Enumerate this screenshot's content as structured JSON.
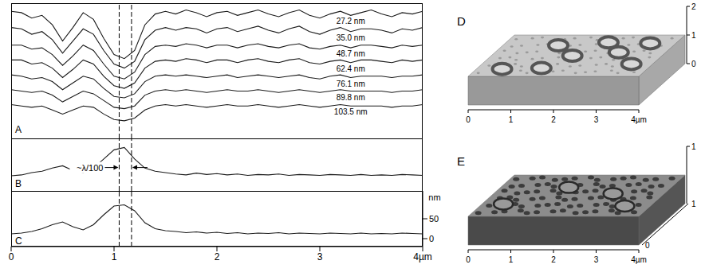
{
  "chart_data": [
    {
      "type": "line",
      "title": "A",
      "tick_labels": false,
      "x": [
        0,
        0.1,
        0.2,
        0.3,
        0.4,
        0.5,
        0.6,
        0.7,
        0.8,
        0.9,
        1,
        1.1,
        1.2,
        1.3,
        1.4,
        1.5,
        1.6,
        1.7,
        1.8,
        1.9,
        2,
        2.1,
        2.2,
        2.3,
        2.4,
        2.5,
        2.6,
        2.7,
        2.8,
        2.9,
        3,
        3.1,
        3.2,
        3.3,
        3.4,
        3.5,
        3.6,
        3.7,
        3.8,
        3.9,
        4
      ],
      "xlim": [
        0,
        4
      ],
      "ylim": [
        0,
        100
      ],
      "vlines": [
        1.05,
        1.17
      ],
      "series": [
        {
          "name": "27.2 nm",
          "color": "#1a1a1a",
          "values": [
            94,
            93,
            89,
            91,
            84,
            72,
            82,
            93,
            88,
            74,
            62,
            59,
            65,
            84,
            92,
            94,
            92,
            95,
            93,
            90,
            93,
            94,
            91,
            93,
            95,
            92,
            90,
            93,
            95,
            91,
            89,
            92,
            94,
            91,
            93,
            95,
            92,
            90,
            93,
            92,
            94
          ]
        },
        {
          "name": "35.0 nm",
          "color": "#1a1a1a",
          "values": [
            82,
            81,
            77,
            79,
            73,
            63,
            72,
            81,
            77,
            65,
            55,
            52,
            57,
            73,
            80,
            82,
            80,
            82,
            81,
            78,
            81,
            82,
            79,
            81,
            83,
            80,
            78,
            81,
            83,
            79,
            77,
            80,
            82,
            79,
            81,
            81,
            80,
            78,
            81,
            80,
            82
          ]
        },
        {
          "name": "48.7 nm",
          "color": "#1a1a1a",
          "values": [
            69,
            69,
            66,
            67,
            62,
            54,
            61,
            69,
            65,
            55,
            46,
            44,
            49,
            62,
            68,
            69,
            68,
            70,
            69,
            67,
            69,
            69,
            67,
            69,
            70,
            68,
            67,
            69,
            70,
            67,
            66,
            68,
            69,
            67,
            69,
            69,
            68,
            67,
            69,
            68,
            69
          ]
        },
        {
          "name": "62.4 nm",
          "color": "#1a1a1a",
          "values": [
            58,
            58,
            55,
            56,
            52,
            45,
            51,
            58,
            55,
            46,
            39,
            37,
            41,
            52,
            57,
            58,
            57,
            59,
            58,
            56,
            58,
            58,
            56,
            58,
            59,
            57,
            56,
            58,
            59,
            56,
            55,
            57,
            58,
            56,
            58,
            58,
            57,
            56,
            58,
            57,
            58
          ]
        },
        {
          "name": "76.1 nm",
          "color": "#1a1a1a",
          "values": [
            47,
            46,
            44,
            45,
            42,
            36,
            41,
            46,
            44,
            37,
            31,
            30,
            33,
            42,
            46,
            47,
            46,
            47,
            46,
            45,
            46,
            47,
            45,
            46,
            47,
            46,
            45,
            46,
            47,
            45,
            44,
            46,
            47,
            45,
            46,
            46,
            46,
            45,
            46,
            46,
            47
          ]
        },
        {
          "name": "89.8 nm",
          "color": "#1a1a1a",
          "values": [
            36,
            35,
            34,
            35,
            32,
            27,
            31,
            35,
            33,
            28,
            23,
            22,
            24,
            32,
            35,
            36,
            35,
            36,
            35,
            34,
            35,
            36,
            35,
            35,
            36,
            35,
            34,
            35,
            36,
            35,
            34,
            35,
            36,
            35,
            35,
            35,
            35,
            34,
            35,
            35,
            36
          ]
        },
        {
          "name": "103.5 nm",
          "color": "#1a1a1a",
          "values": [
            25,
            24,
            23,
            24,
            21,
            18,
            21,
            24,
            23,
            18,
            14,
            13,
            15,
            21,
            24,
            25,
            24,
            25,
            24,
            23,
            24,
            25,
            24,
            24,
            25,
            24,
            23,
            24,
            25,
            24,
            23,
            24,
            25,
            24,
            24,
            24,
            24,
            23,
            24,
            24,
            25
          ]
        }
      ]
    },
    {
      "type": "line",
      "title": "B",
      "tick_labels": false,
      "annotation": "~λ/100",
      "x": [
        0,
        0.1,
        0.2,
        0.3,
        0.4,
        0.5,
        0.6,
        0.7,
        0.8,
        0.9,
        1,
        1.1,
        1.2,
        1.3,
        1.4,
        1.5,
        1.6,
        1.7,
        1.8,
        1.9,
        2,
        2.1,
        2.2,
        2.3,
        2.4,
        2.5,
        2.6,
        2.7,
        2.8,
        2.9,
        3,
        3.1,
        3.2,
        3.3,
        3.4,
        3.5,
        3.6,
        3.7,
        3.8,
        3.9,
        4
      ],
      "xlim": [
        0,
        4
      ],
      "ylim": [
        -15,
        100
      ],
      "vlines": [
        1.05,
        1.17
      ],
      "color": "#1a1a1a",
      "values": [
        18,
        20,
        25,
        28,
        35,
        40,
        30,
        25,
        35,
        55,
        75,
        80,
        55,
        35,
        28,
        25,
        22,
        20,
        24,
        21,
        23,
        20,
        22,
        19,
        21,
        20,
        22,
        19,
        21,
        20,
        19,
        21,
        20,
        19,
        21,
        19,
        20,
        19,
        21,
        20,
        19
      ]
    },
    {
      "type": "line",
      "title": "C",
      "y_label": "nm",
      "x": [
        0,
        0.1,
        0.2,
        0.3,
        0.4,
        0.5,
        0.6,
        0.7,
        0.8,
        0.9,
        1,
        1.1,
        1.2,
        1.3,
        1.4,
        1.5,
        1.6,
        1.7,
        1.8,
        1.9,
        2,
        2.1,
        2.2,
        2.3,
        2.4,
        2.5,
        2.6,
        2.7,
        2.8,
        2.9,
        3,
        3.1,
        3.2,
        3.3,
        3.4,
        3.5,
        3.6,
        3.7,
        3.8,
        3.9,
        4
      ],
      "xlim": [
        0,
        4
      ],
      "xticks": [
        0,
        1,
        2,
        3,
        {
          "value": 4,
          "label": "4µm"
        }
      ],
      "ylim": [
        -20,
        120
      ],
      "yticks": [
        0,
        50
      ],
      "vlines": [
        1.05,
        1.17
      ],
      "color": "#1a1a1a",
      "values": [
        12,
        14,
        18,
        25,
        35,
        42,
        30,
        22,
        35,
        60,
        82,
        85,
        70,
        40,
        25,
        20,
        18,
        15,
        17,
        14,
        16,
        13,
        15,
        12,
        14,
        13,
        15,
        12,
        14,
        13,
        12,
        14,
        13,
        12,
        14,
        12,
        13,
        12,
        14,
        13,
        12
      ]
    },
    {
      "type": "surface",
      "title": "D",
      "xlim": [
        0,
        4
      ],
      "xticks": [
        0,
        1,
        2,
        3,
        {
          "value": 4,
          "label": "4µm"
        }
      ],
      "zlim": [
        0,
        2
      ],
      "zticks": [
        0,
        1,
        2
      ],
      "color": "#c8c8c8"
    },
    {
      "type": "surface",
      "title": "E",
      "xlim": [
        0,
        4
      ],
      "xticks": [
        0,
        1,
        2,
        3,
        {
          "value": 4,
          "label": "4µm"
        }
      ],
      "zlim": [
        0,
        1
      ],
      "zticks": [
        1
      ],
      "ylim": [
        0,
        1
      ],
      "yticks": [
        0,
        1
      ],
      "color": "#8c8c8c"
    }
  ]
}
